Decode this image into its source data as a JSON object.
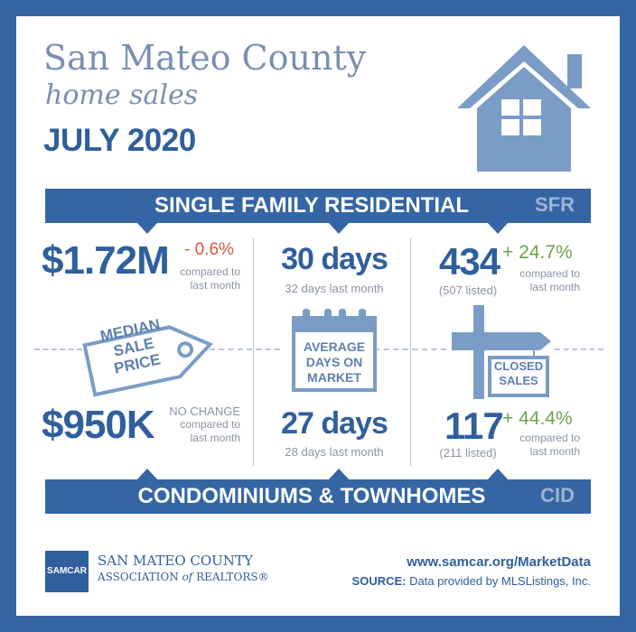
{
  "title": {
    "line1": "San Mateo County",
    "line2": "home sales",
    "line3": "JULY 2020"
  },
  "sfr_banner": {
    "label": "SINGLE FAMILY RESIDENTIAL",
    "code": "SFR"
  },
  "cid_banner": {
    "label": "CONDOMINIUMS & TOWNHOMES",
    "code": "CID"
  },
  "median": {
    "tag_label": "MEDIAN SALE PRICE",
    "tag_line1": "MEDIAN",
    "tag_line2": "SALE",
    "tag_line3": "PRICE",
    "sfr_value": "$1.72M",
    "sfr_change": "- 0.6%",
    "sfr_note1": "compared to",
    "sfr_note2": "last month",
    "cid_value": "$950K",
    "cid_change": "NO CHANGE",
    "cid_note1": "compared to",
    "cid_note2": "last month"
  },
  "days": {
    "sign_line1": "AVERAGE",
    "sign_line2": "DAYS ON",
    "sign_line3": "MARKET",
    "sfr_value": "30 days",
    "sfr_note_num": "32 days",
    "sfr_note_rest": "last month",
    "cid_value": "27 days",
    "cid_note_num": "28 days",
    "cid_note_rest": "last month"
  },
  "closed": {
    "sign_line1": "CLOSED",
    "sign_line2": "SALES",
    "sfr_value": "434",
    "sfr_listed": "(507 listed)",
    "sfr_change": "+ 24.7%",
    "sfr_note1": "compared to",
    "sfr_note2": "last month",
    "cid_value": "117",
    "cid_listed": "(211 listed)",
    "cid_change": "+ 44.4%",
    "cid_note1": "compared to",
    "cid_note2": "last month"
  },
  "footer": {
    "logo_text": "SAMCAR",
    "org_line1": "SAN MATEO COUNTY",
    "org_line2a": "ASSOCIATION",
    "org_line2b": "of",
    "org_line2c": "REALTORS®",
    "url": "www.samcar.org/MarketData",
    "source_label": "SOURCE:",
    "source_text": "Data provided by MLSListings, Inc."
  },
  "colors": {
    "brand": "#3565a4",
    "accent_light": "#7a9cc6",
    "decline": "#d4583c",
    "increase": "#6fa34b"
  },
  "icons": [
    "house-icon",
    "price-tag-icon",
    "calendar-icon",
    "signpost-icon"
  ]
}
